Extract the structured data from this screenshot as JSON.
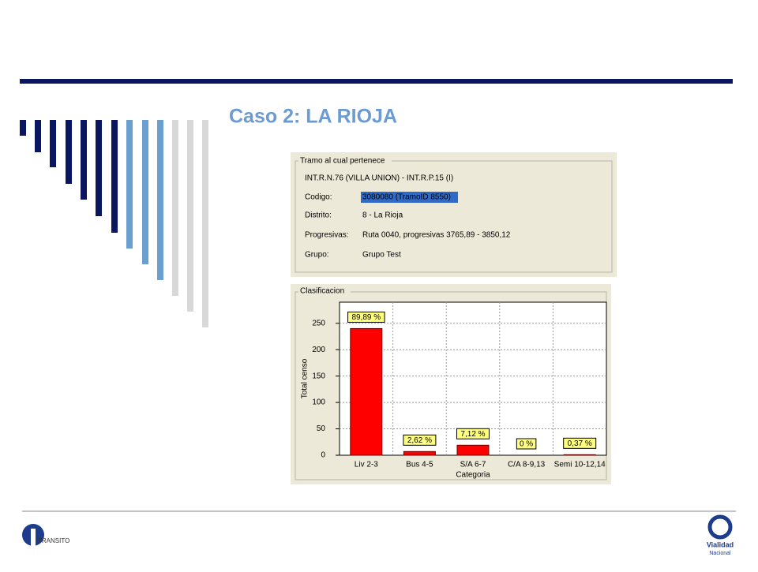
{
  "title": "Caso 2: LA RIOJA",
  "panel": {
    "title": "Tramo al cual pertenece",
    "route": "INT.R.N.76 (VILLA UNION) - INT.R.P.15 (I)",
    "fields": [
      {
        "label": "Codigo:",
        "value": "3080080 (TramoID 8550)"
      },
      {
        "label": "Distrito:",
        "value": "8 - La Rioja"
      },
      {
        "label": "Progresivas:",
        "value": "Ruta 0040, progresivas 3765,89 - 3850,12"
      },
      {
        "label": "Grupo:",
        "value": "Grupo Test"
      }
    ]
  },
  "chart_data": {
    "type": "bar",
    "title": "Clasificacion",
    "categories": [
      "Liv 2-3",
      "Bus 4-5",
      "S/A 6-7",
      "C/A 8-9,13",
      "Semi 10-12,14"
    ],
    "values": [
      240,
      7,
      19,
      0,
      1
    ],
    "annotations": [
      "89,89 %",
      "2,62 %",
      "7,12 %",
      "0 %",
      "0,37 %"
    ],
    "xlabel": "Categoria",
    "ylabel": "Total censo",
    "ylim": [
      0,
      290
    ],
    "yticks": [
      0,
      50,
      100,
      150,
      200,
      250
    ],
    "grid": true,
    "color": "#ff0000"
  },
  "logos": {
    "left": "TRANSITO",
    "right": [
      "Vialidad",
      "Nacional"
    ]
  }
}
